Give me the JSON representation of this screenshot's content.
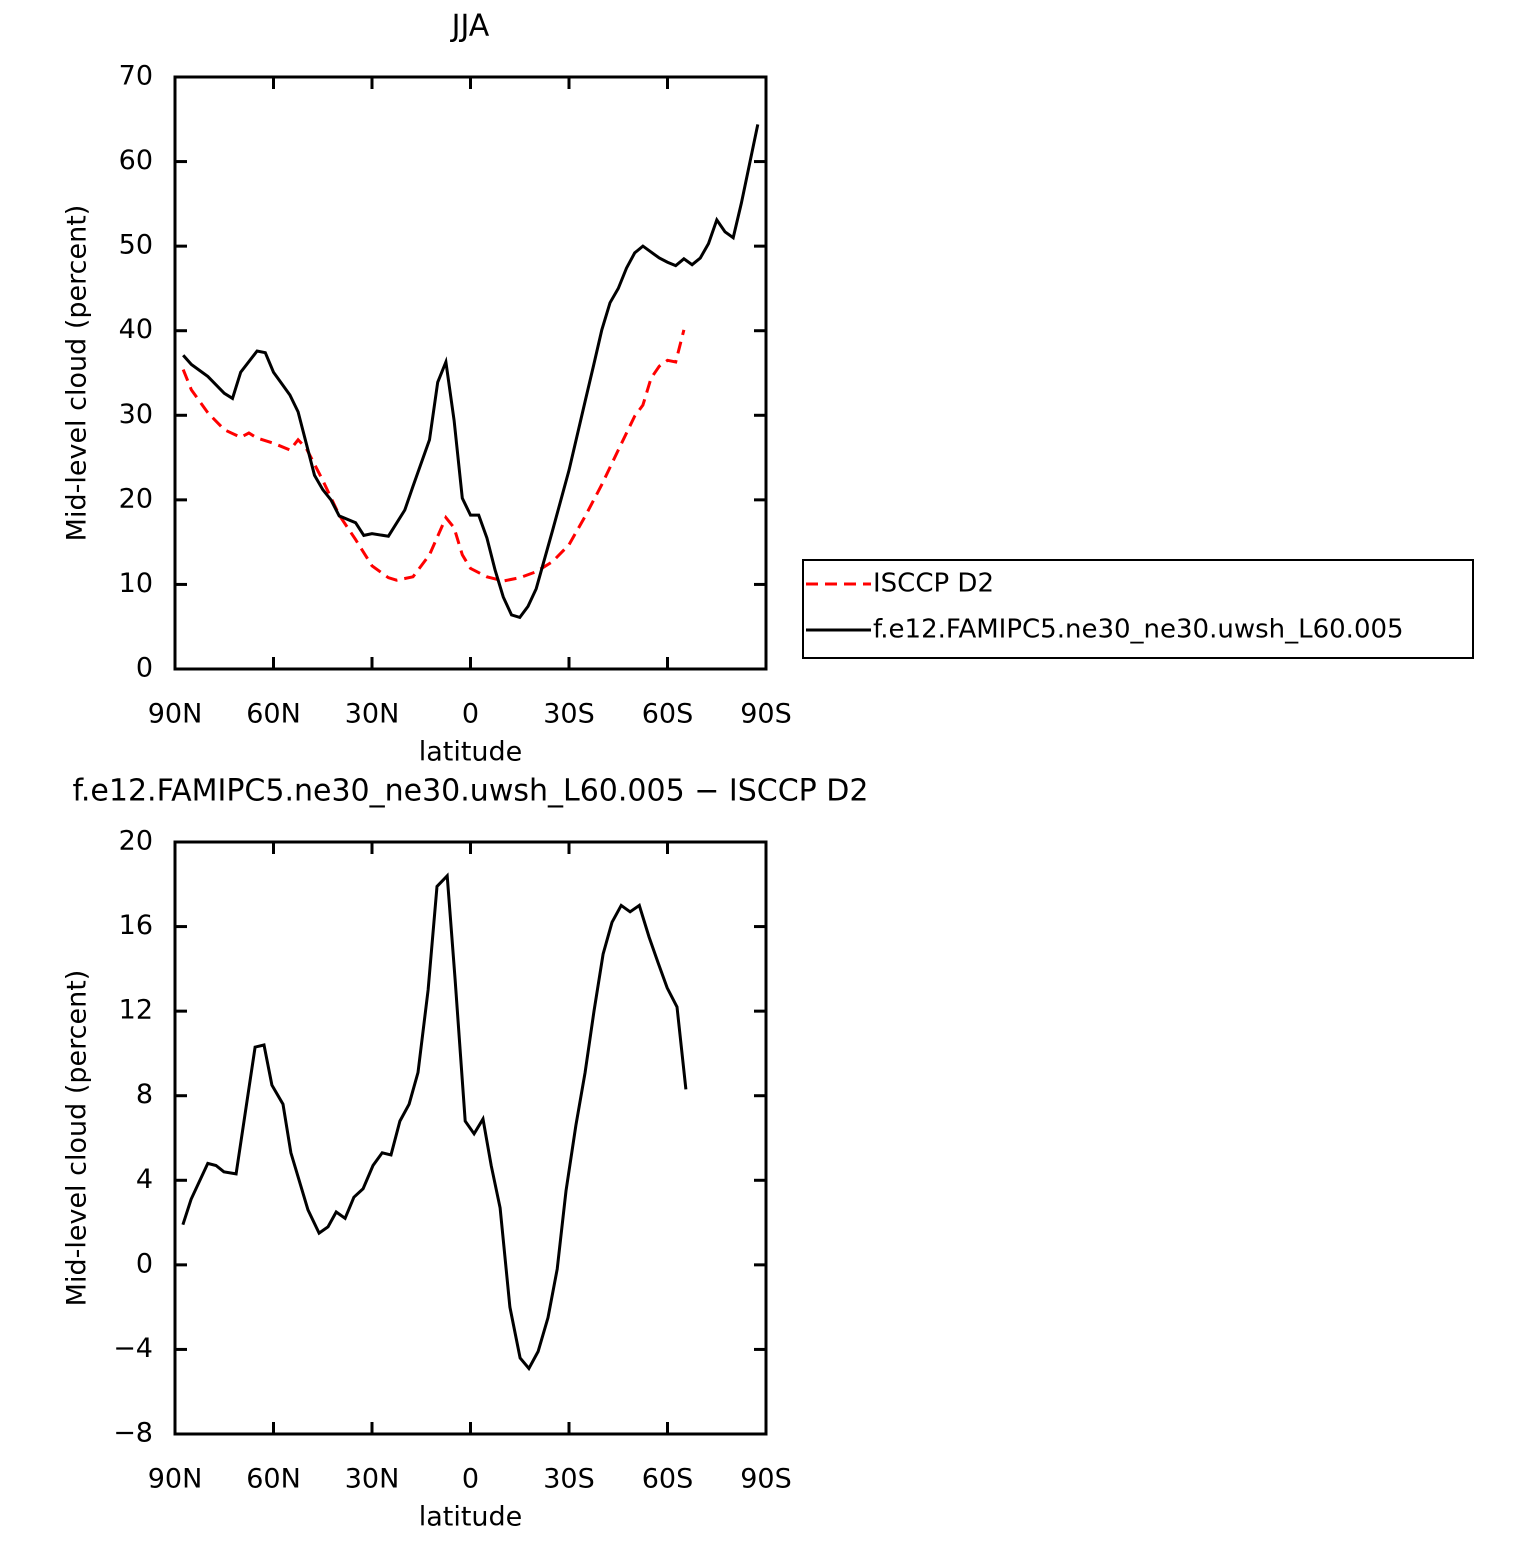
{
  "chart_data": [
    {
      "type": "line",
      "title": "JJA",
      "xlabel": "latitude",
      "ylabel": "Mid-level cloud (percent)",
      "xlim": [
        90,
        -90
      ],
      "xticks": [
        {
          "value": 90,
          "label": "90N"
        },
        {
          "value": 60,
          "label": "60N"
        },
        {
          "value": 30,
          "label": "30N"
        },
        0,
        {
          "value": -30,
          "label": "30S"
        },
        {
          "value": -60,
          "label": "60S"
        },
        {
          "value": -90,
          "label": "90S"
        }
      ],
      "ylim": [
        0,
        70
      ],
      "yticks": [
        0,
        10,
        20,
        30,
        40,
        50,
        60,
        70
      ],
      "legend": "right",
      "series": [
        {
          "name": "ISCCP D2",
          "color": "#ff0000",
          "linestyle": "dashed",
          "x": [
            87.5,
            85,
            80,
            75,
            70,
            67.5,
            65,
            60,
            55,
            52.5,
            50,
            45,
            40,
            35,
            30,
            25,
            22.5,
            17.5,
            12.5,
            7.5,
            5,
            2.5,
            0,
            -5,
            -10,
            -15,
            -20,
            -25,
            -30,
            -35,
            -40,
            -45,
            -50,
            -52.5,
            -55,
            -57.5,
            -60,
            -62.5,
            -65
          ],
          "values": [
            35.4,
            33.0,
            30.3,
            28.3,
            27.4,
            27.9,
            27.3,
            26.7,
            25.9,
            27.1,
            26.1,
            22.3,
            18.2,
            15.3,
            12.2,
            10.8,
            10.5,
            10.9,
            13.5,
            17.9,
            16.7,
            13.5,
            11.9,
            10.9,
            10.4,
            10.8,
            11.5,
            12.7,
            14.7,
            18.1,
            21.8,
            25.9,
            29.9,
            31.2,
            34.4,
            35.8,
            36.5,
            36.3,
            40.1
          ]
        },
        {
          "name": "f.e12.FAMIPC5.ne30_ne30.uwsh_L60.005",
          "color": "#000000",
          "linestyle": "solid",
          "x": [
            87.5,
            85,
            80,
            77.5,
            75,
            72.5,
            70,
            65,
            62.5,
            60,
            55,
            52.5,
            47.5,
            45,
            42.5,
            40,
            35,
            32.5,
            30,
            25,
            20,
            17.5,
            12.5,
            10,
            7.5,
            5,
            2.5,
            0,
            -2.5,
            -5,
            -7.5,
            -10,
            -12.5,
            -15,
            -17.5,
            -20,
            -25,
            -30,
            -35,
            -37.5,
            -40,
            -42.5,
            -45,
            -47.5,
            -50,
            -52.5,
            -55,
            -57.5,
            -60,
            -62.5,
            -65,
            -67.5,
            -70,
            -72.5,
            -75,
            -77.5,
            -80,
            -82.5,
            -87.5
          ],
          "values": [
            37.1,
            36.0,
            34.6,
            33.6,
            32.6,
            32.0,
            35.1,
            37.6,
            37.4,
            35.1,
            32.4,
            30.4,
            22.9,
            21.2,
            20.0,
            18.1,
            17.3,
            15.8,
            16.0,
            15.7,
            18.8,
            21.6,
            27.1,
            33.9,
            36.3,
            29.4,
            20.2,
            18.2,
            18.2,
            15.5,
            11.7,
            8.5,
            6.4,
            6.1,
            7.4,
            9.5,
            16.4,
            23.5,
            31.8,
            35.9,
            40.1,
            43.3,
            45.0,
            47.4,
            49.2,
            50.0,
            49.3,
            48.6,
            48.1,
            47.7,
            48.5,
            47.8,
            48.6,
            50.3,
            53.1,
            51.7,
            51.0,
            55.1,
            64.4
          ]
        }
      ]
    },
    {
      "type": "line",
      "title": "f.e12.FAMIPC5.ne30_ne30.uwsh_L60.005 − ISCCP D2",
      "xlabel": "latitude",
      "ylabel": "Mid-level cloud (percent)",
      "xlim": [
        90,
        -90
      ],
      "xticks": [
        {
          "value": 90,
          "label": "90N"
        },
        {
          "value": 60,
          "label": "60N"
        },
        {
          "value": 30,
          "label": "30N"
        },
        0,
        {
          "value": -30,
          "label": "30S"
        },
        {
          "value": -60,
          "label": "60S"
        },
        {
          "value": -90,
          "label": "90S"
        }
      ],
      "ylim": [
        -8,
        20
      ],
      "yticks": [
        {
          "value": -8,
          "label": "−8"
        },
        {
          "value": -4,
          "label": "−4"
        },
        0,
        4,
        8,
        12,
        16,
        20
      ],
      "series": [
        {
          "color": "#000000",
          "linestyle": "solid",
          "x": [
            87.6,
            85.1,
            80,
            77.5,
            75.1,
            71.4,
            65.6,
            62.9,
            60.5,
            57.1,
            54.7,
            49.5,
            46.1,
            43.4,
            40.9,
            38.2,
            35.5,
            32.7,
            29.7,
            26.9,
            24.2,
            21.5,
            18.7,
            16,
            12.9,
            10.2,
            7.1,
            4.7,
            1.6,
            -1.1,
            -3.8,
            -6.3,
            -9.0,
            -12.0,
            -15.1,
            -17.8,
            -20.6,
            -23.6,
            -26.4,
            -29.1,
            -32.1,
            -34.9,
            -37.6,
            -40.4,
            -43.1,
            -45.9,
            -48.6,
            -51.4,
            -54.4,
            -57.1,
            -59.9,
            -62.9,
            -65.6
          ],
          "values": [
            1.9,
            3.1,
            4.8,
            4.7,
            4.4,
            4.3,
            10.3,
            10.4,
            8.5,
            7.6,
            5.3,
            2.6,
            1.5,
            1.8,
            2.5,
            2.2,
            3.2,
            3.6,
            4.7,
            5.3,
            5.2,
            6.8,
            7.6,
            9.1,
            13.0,
            17.9,
            18.4,
            13.5,
            6.8,
            6.2,
            6.9,
            4.7,
            2.7,
            -2.0,
            -4.4,
            -4.9,
            -4.1,
            -2.5,
            -0.2,
            3.5,
            6.6,
            9.1,
            12.0,
            14.7,
            16.2,
            17.0,
            16.7,
            17.0,
            15.5,
            14.3,
            13.1,
            12.2,
            8.3
          ]
        }
      ]
    }
  ]
}
